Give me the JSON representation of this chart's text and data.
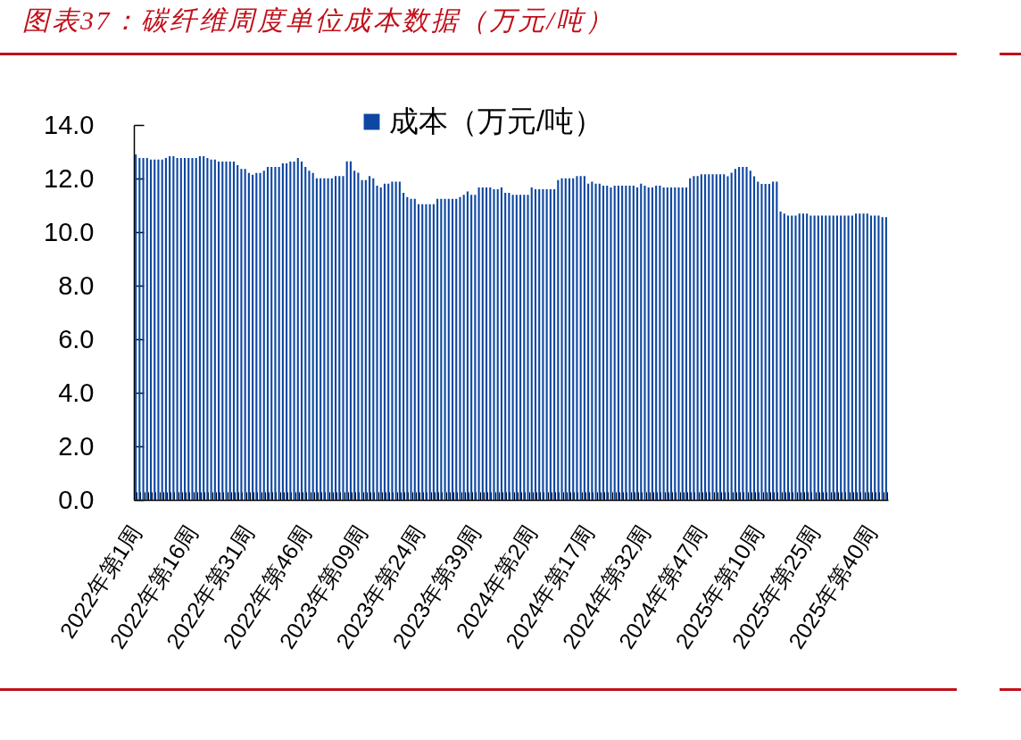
{
  "chart_data": {
    "type": "bar",
    "title": "图表37：碳纤维周度单位成本数据（万元/吨）",
    "categories": [
      "2022年第1周",
      null,
      null,
      null,
      null,
      null,
      null,
      null,
      null,
      null,
      null,
      null,
      null,
      null,
      null,
      "2022年第16周",
      null,
      null,
      null,
      null,
      null,
      null,
      null,
      null,
      null,
      null,
      null,
      null,
      null,
      null,
      "2022年第31周",
      null,
      null,
      null,
      null,
      null,
      null,
      null,
      null,
      null,
      null,
      null,
      null,
      null,
      null,
      "2022年第46周",
      null,
      null,
      null,
      null,
      null,
      null,
      null,
      null,
      null,
      null,
      null,
      null,
      null,
      null,
      "2023年第09周",
      null,
      null,
      null,
      null,
      null,
      null,
      null,
      null,
      null,
      null,
      null,
      null,
      null,
      null,
      "2023年第24周",
      null,
      null,
      null,
      null,
      null,
      null,
      null,
      null,
      null,
      null,
      null,
      null,
      null,
      null,
      "2023年第39周",
      null,
      null,
      null,
      null,
      null,
      null,
      null,
      null,
      null,
      null,
      null,
      null,
      null,
      null,
      "2024年第2周",
      null,
      null,
      null,
      null,
      null,
      null,
      null,
      null,
      null,
      null,
      null,
      null,
      null,
      null,
      "2024年第17周",
      null,
      null,
      null,
      null,
      null,
      null,
      null,
      null,
      null,
      null,
      null,
      null,
      null,
      null,
      "2024年第32周",
      null,
      null,
      null,
      null,
      null,
      null,
      null,
      null,
      null,
      null,
      null,
      null,
      null,
      null,
      "2024年第47周",
      null,
      null,
      null,
      null,
      null,
      null,
      null,
      null,
      null,
      null,
      null,
      null,
      null,
      null,
      "2025年第10周",
      null,
      null,
      null,
      null,
      null,
      null,
      null,
      null,
      null,
      null,
      null,
      null,
      null,
      null,
      "2025年第25周",
      null,
      null,
      null,
      null,
      null,
      null,
      null,
      null,
      null,
      null,
      null,
      null,
      null,
      null,
      "2025年第40周",
      null,
      null,
      null,
      null
    ],
    "series": [
      {
        "name": "成本（万元/吨）",
        "color": "#0d47a1",
        "values": [
          12.9,
          12.77,
          12.77,
          12.77,
          12.71,
          12.71,
          12.71,
          12.71,
          12.77,
          12.83,
          12.83,
          12.77,
          12.77,
          12.77,
          12.77,
          12.77,
          12.77,
          12.83,
          12.83,
          12.77,
          12.71,
          12.71,
          12.63,
          12.63,
          12.63,
          12.63,
          12.63,
          12.5,
          12.36,
          12.36,
          12.21,
          12.14,
          12.21,
          12.21,
          12.29,
          12.43,
          12.43,
          12.43,
          12.43,
          12.57,
          12.57,
          12.63,
          12.63,
          12.77,
          12.63,
          12.43,
          12.29,
          12.21,
          12.01,
          12.01,
          12.01,
          12.01,
          12.01,
          12.09,
          12.09,
          12.09,
          12.64,
          12.64,
          12.29,
          12.22,
          11.94,
          11.94,
          12.09,
          12.01,
          11.73,
          11.67,
          11.81,
          11.81,
          11.88,
          11.88,
          11.88,
          11.47,
          11.31,
          11.24,
          11.24,
          11.04,
          11.04,
          11.04,
          11.04,
          11.04,
          11.24,
          11.24,
          11.24,
          11.24,
          11.24,
          11.24,
          11.31,
          11.39,
          11.52,
          11.39,
          11.39,
          11.67,
          11.67,
          11.67,
          11.67,
          11.6,
          11.6,
          11.67,
          11.47,
          11.47,
          11.39,
          11.39,
          11.39,
          11.39,
          11.39,
          11.67,
          11.6,
          11.6,
          11.6,
          11.6,
          11.6,
          11.6,
          11.94,
          12.01,
          12.01,
          12.01,
          12.01,
          12.09,
          12.09,
          12.09,
          11.81,
          11.88,
          11.81,
          11.81,
          11.73,
          11.73,
          11.67,
          11.73,
          11.73,
          11.73,
          11.73,
          11.73,
          11.73,
          11.67,
          11.81,
          11.73,
          11.67,
          11.67,
          11.73,
          11.73,
          11.67,
          11.67,
          11.67,
          11.67,
          11.67,
          11.67,
          11.67,
          12.01,
          12.09,
          12.09,
          12.16,
          12.16,
          12.16,
          12.16,
          12.16,
          12.16,
          12.16,
          12.08,
          12.22,
          12.36,
          12.43,
          12.43,
          12.43,
          12.29,
          12.08,
          11.88,
          11.8,
          11.8,
          11.8,
          11.88,
          11.88,
          10.77,
          10.69,
          10.62,
          10.62,
          10.62,
          10.69,
          10.69,
          10.69,
          10.62,
          10.62,
          10.62,
          10.62,
          10.62,
          10.62,
          10.62,
          10.62,
          10.62,
          10.62,
          10.62,
          10.62,
          10.69,
          10.69,
          10.69,
          10.69,
          10.62,
          10.62,
          10.62,
          10.56,
          10.56
        ]
      }
    ],
    "ylim": [
      0,
      14
    ],
    "yticks": [
      {
        "value": 0,
        "label": "0.0"
      },
      {
        "value": 2,
        "label": "2.0"
      },
      {
        "value": 4,
        "label": "4.0"
      },
      {
        "value": 6,
        "label": "6.0"
      },
      {
        "value": 8,
        "label": "8.0"
      },
      {
        "value": 10,
        "label": "10.0"
      },
      {
        "value": 12,
        "label": "12.0"
      },
      {
        "value": 14,
        "label": "14.0"
      }
    ],
    "legend": "top"
  }
}
